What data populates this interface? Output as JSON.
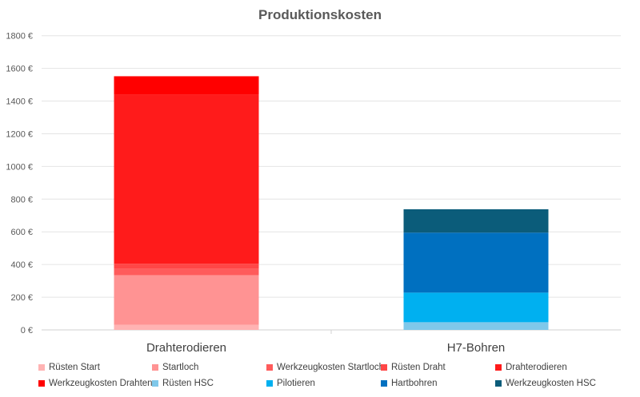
{
  "chart_data": {
    "type": "bar",
    "stacked": true,
    "title": "Produktionskosten",
    "categories": [
      "Drahterodieren",
      "H7-Bohren"
    ],
    "ylim": [
      0,
      1800
    ],
    "yticks": [
      "0 €",
      "200 €",
      "400 €",
      "600 €",
      "800 €",
      "1000 €",
      "1200 €",
      "1400 €",
      "1600 €",
      "1800 €"
    ],
    "grid": true,
    "legend_position": "bottom",
    "series": [
      {
        "name": "Rüsten Start",
        "color": "#FFB3B3",
        "values": [
          31,
          0
        ]
      },
      {
        "name": "Startloch",
        "color": "#FF9393",
        "values": [
          304,
          0
        ]
      },
      {
        "name": "Werkzeugkosten Startloch",
        "color": "#FF5B5B",
        "values": [
          41,
          0
        ]
      },
      {
        "name": "Rüsten Draht",
        "color": "#FF4747",
        "values": [
          29,
          0
        ]
      },
      {
        "name": "Drahterodieren",
        "color": "#FF1B1B",
        "values": [
          1033,
          0
        ]
      },
      {
        "name": "Werkzeugkosten Drahten",
        "color": "#FF0000",
        "values": [
          114,
          0
        ]
      },
      {
        "name": "Rüsten HSC",
        "color": "#7FC8EA",
        "values": [
          0,
          47
        ]
      },
      {
        "name": "Pilotieren",
        "color": "#00B0F0",
        "values": [
          0,
          181
        ]
      },
      {
        "name": "Hartbohren",
        "color": "#0070C0",
        "values": [
          0,
          367
        ]
      },
      {
        "name": "Werkzeugkosten HSC",
        "color": "#0B5C7A",
        "values": [
          0,
          143
        ]
      }
    ]
  }
}
